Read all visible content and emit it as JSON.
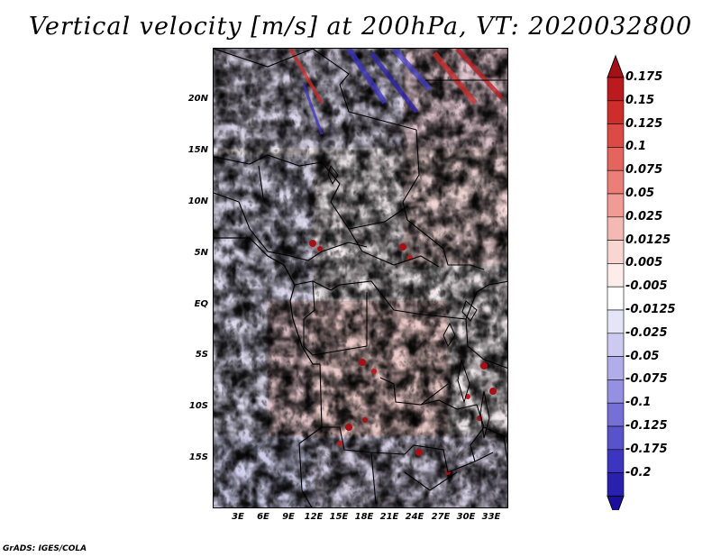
{
  "title": "Vertical velocity [m/s] at 200hPa, VT: 2020032800",
  "credit": "GrADS: IGES/COLA",
  "latitude_labels": [
    "20N",
    "15N",
    "10N",
    "5N",
    "EQ",
    "5S",
    "10S",
    "15S"
  ],
  "longitude_labels": [
    "3E",
    "6E",
    "9E",
    "12E",
    "15E",
    "18E",
    "21E",
    "24E",
    "27E",
    "30E",
    "33E"
  ],
  "colorbar": {
    "labels": [
      "0.175",
      "0.15",
      "0.125",
      "0.1",
      "0.075",
      "0.05",
      "0.025",
      "0.0125",
      "0.005",
      "-0.005",
      "-0.0125",
      "-0.025",
      "-0.05",
      "-0.075",
      "-0.1",
      "-0.125",
      "-0.175",
      "-0.2"
    ],
    "colors": [
      "#a50f15",
      "#bd1a1f",
      "#cf2d2c",
      "#dd4a45",
      "#e5645e",
      "#ec7d77",
      "#f09b94",
      "#f5b9b3",
      "#fad6d2",
      "#fdecea",
      "#ffffff",
      "#e6e4f7",
      "#cccaf0",
      "#b1ade8",
      "#9590e0",
      "#7670d6",
      "#5852cc",
      "#3b35c2",
      "#2a20b0",
      "#1a0f9e"
    ]
  },
  "map_legend": {
    "icon": "vertical-velocity-shaded-field",
    "colors": {
      "rising": "#e5645e",
      "sinking": "#7670d6",
      "neutral": "#ffffff",
      "border": "#000000"
    }
  }
}
